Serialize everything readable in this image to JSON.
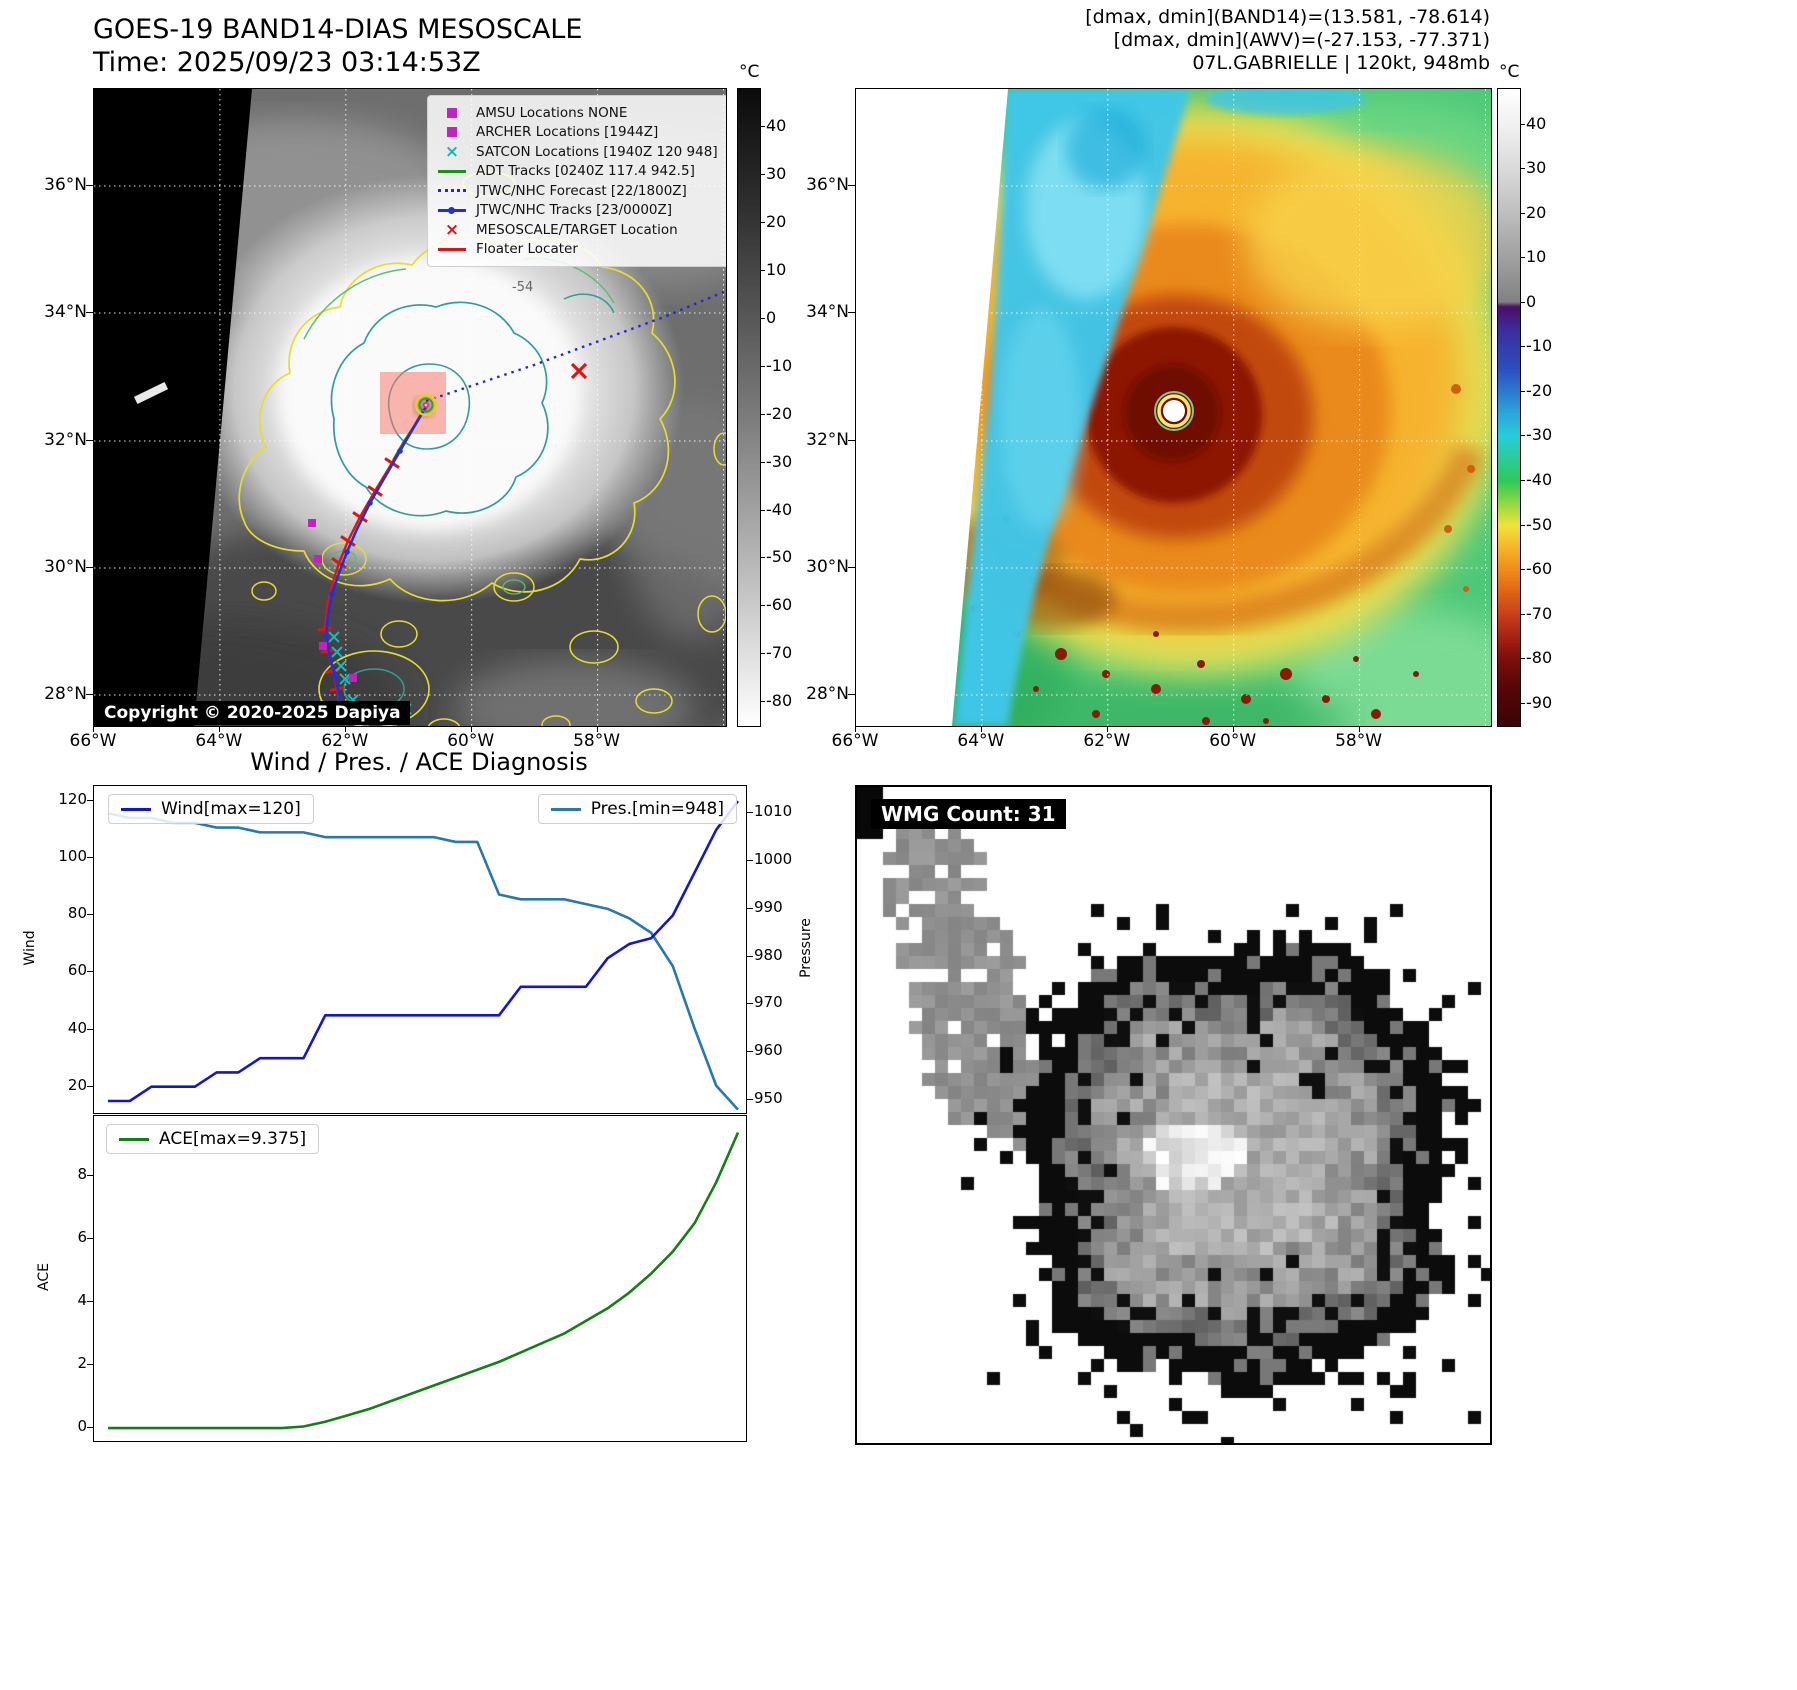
{
  "panel_band14": {
    "title": "GOES-19 BAND14-DIAS MESOSCALE",
    "time": "Time: 2025/09/23 03:14:53Z",
    "copyright": "Copyright © 2020-2025 Dapiya",
    "contour_label": "-54",
    "lat_ticks": [
      "36°N",
      "34°N",
      "32°N",
      "30°N",
      "28°N"
    ],
    "lon_ticks": [
      "66°W",
      "64°W",
      "62°W",
      "60°W",
      "58°W"
    ],
    "colorbar": {
      "unit": "°C",
      "ticks": [
        40,
        30,
        20,
        10,
        0,
        -10,
        -20,
        -30,
        -40,
        -50,
        -60,
        -70,
        -80
      ]
    },
    "legend": [
      {
        "label": "AMSU Locations NONE",
        "marker": "square",
        "color": "#c322c3"
      },
      {
        "label": "ARCHER Locations [1944Z]",
        "marker": "square",
        "color": "#c322c3"
      },
      {
        "label": "SATCON Locations [1940Z 120 948]",
        "marker": "x",
        "color": "#19b6b6"
      },
      {
        "label": "ADT Tracks [0240Z 117.4 942.5]",
        "marker": "line",
        "color": "#1e8c1e"
      },
      {
        "label": "JTWC/NHC Forecast [22/1800Z]",
        "marker": "dotted",
        "color": "#2525d8"
      },
      {
        "label": "JTWC/NHC Tracks [23/0000Z]",
        "marker": "line-dot",
        "color": "#2330cf"
      },
      {
        "label": "MESOSCALE/TARGET Location",
        "marker": "x",
        "color": "#e01414"
      },
      {
        "label": "Floater Locater",
        "marker": "line",
        "color": "#e01414"
      }
    ]
  },
  "panel_awv": {
    "header_line1": "[dmax, dmin](BAND14)=(13.581, -78.614)",
    "header_line2": "[dmax, dmin](AWV)=(-27.153, -77.371)",
    "header_line3": "07L.GABRIELLE | 120kt, 948mb",
    "lat_ticks": [
      "36°N",
      "34°N",
      "32°N",
      "30°N",
      "28°N"
    ],
    "lon_ticks": [
      "66°W",
      "64°W",
      "62°W",
      "60°W",
      "58°W"
    ],
    "colorbar": {
      "unit": "°C",
      "ticks": [
        40,
        30,
        20,
        10,
        0,
        -10,
        -20,
        -30,
        -40,
        -50,
        -60,
        -70,
        -80,
        -90
      ]
    }
  },
  "diagnosis": {
    "title": "Wind / Pres. / ACE Diagnosis",
    "wind_legend": "Wind[max=120]",
    "pres_legend": "Pres.[min=948]",
    "ace_legend": "ACE[max=9.375]",
    "wind_axis_label": "Wind",
    "pressure_axis_label": "Pressure",
    "ace_axis_label": "ACE"
  },
  "wmg": {
    "label": "WMG Count: 31"
  },
  "chart_data": [
    {
      "type": "line",
      "title": "Wind / Pres. / ACE Diagnosis (wind & pressure)",
      "left_ylabel": "Wind",
      "right_ylabel": "Pressure",
      "left_ylim": [
        10.8,
        125.3
      ],
      "right_ylim": [
        947.3,
        1015.7
      ],
      "left_ticks": [
        20,
        40,
        60,
        80,
        100,
        120
      ],
      "right_ticks": [
        950,
        960,
        970,
        980,
        990,
        1000,
        1010
      ],
      "series": [
        {
          "name": "Wind[max=120]",
          "axis": "left",
          "color": "#1414d2",
          "max": 120,
          "values": [
            15,
            15,
            20,
            20,
            20,
            25,
            25,
            30,
            30,
            30,
            45,
            45,
            45,
            45,
            45,
            45,
            45,
            45,
            45,
            55,
            55,
            55,
            55,
            65,
            70,
            72,
            80,
            95,
            110,
            120
          ]
        },
        {
          "name": "Pres.[min=948]",
          "axis": "right",
          "color": "#2878b0",
          "min": 948,
          "values": [
            1010,
            1009,
            1009,
            1008,
            1008,
            1007,
            1007,
            1006,
            1006,
            1006,
            1005,
            1005,
            1005,
            1005,
            1005,
            1005,
            1004,
            1004,
            993,
            992,
            992,
            992,
            991,
            990,
            988,
            985,
            978,
            965,
            953,
            948
          ]
        }
      ]
    },
    {
      "type": "line",
      "title": "ACE diagnosis",
      "ylabel": "ACE",
      "ylim": [
        -0.41,
        9.9
      ],
      "yticks": [
        0,
        2,
        4,
        6,
        8
      ],
      "series": [
        {
          "name": "ACE[max=9.375]",
          "color": "#128012",
          "max": 9.375,
          "values": [
            0,
            0,
            0,
            0,
            0,
            0,
            0,
            0,
            0,
            0.05,
            0.2,
            0.4,
            0.6,
            0.85,
            1.1,
            1.35,
            1.6,
            1.85,
            2.1,
            2.4,
            2.7,
            3.0,
            3.4,
            3.8,
            4.3,
            4.9,
            5.6,
            6.5,
            7.8,
            9.375
          ]
        }
      ]
    }
  ]
}
